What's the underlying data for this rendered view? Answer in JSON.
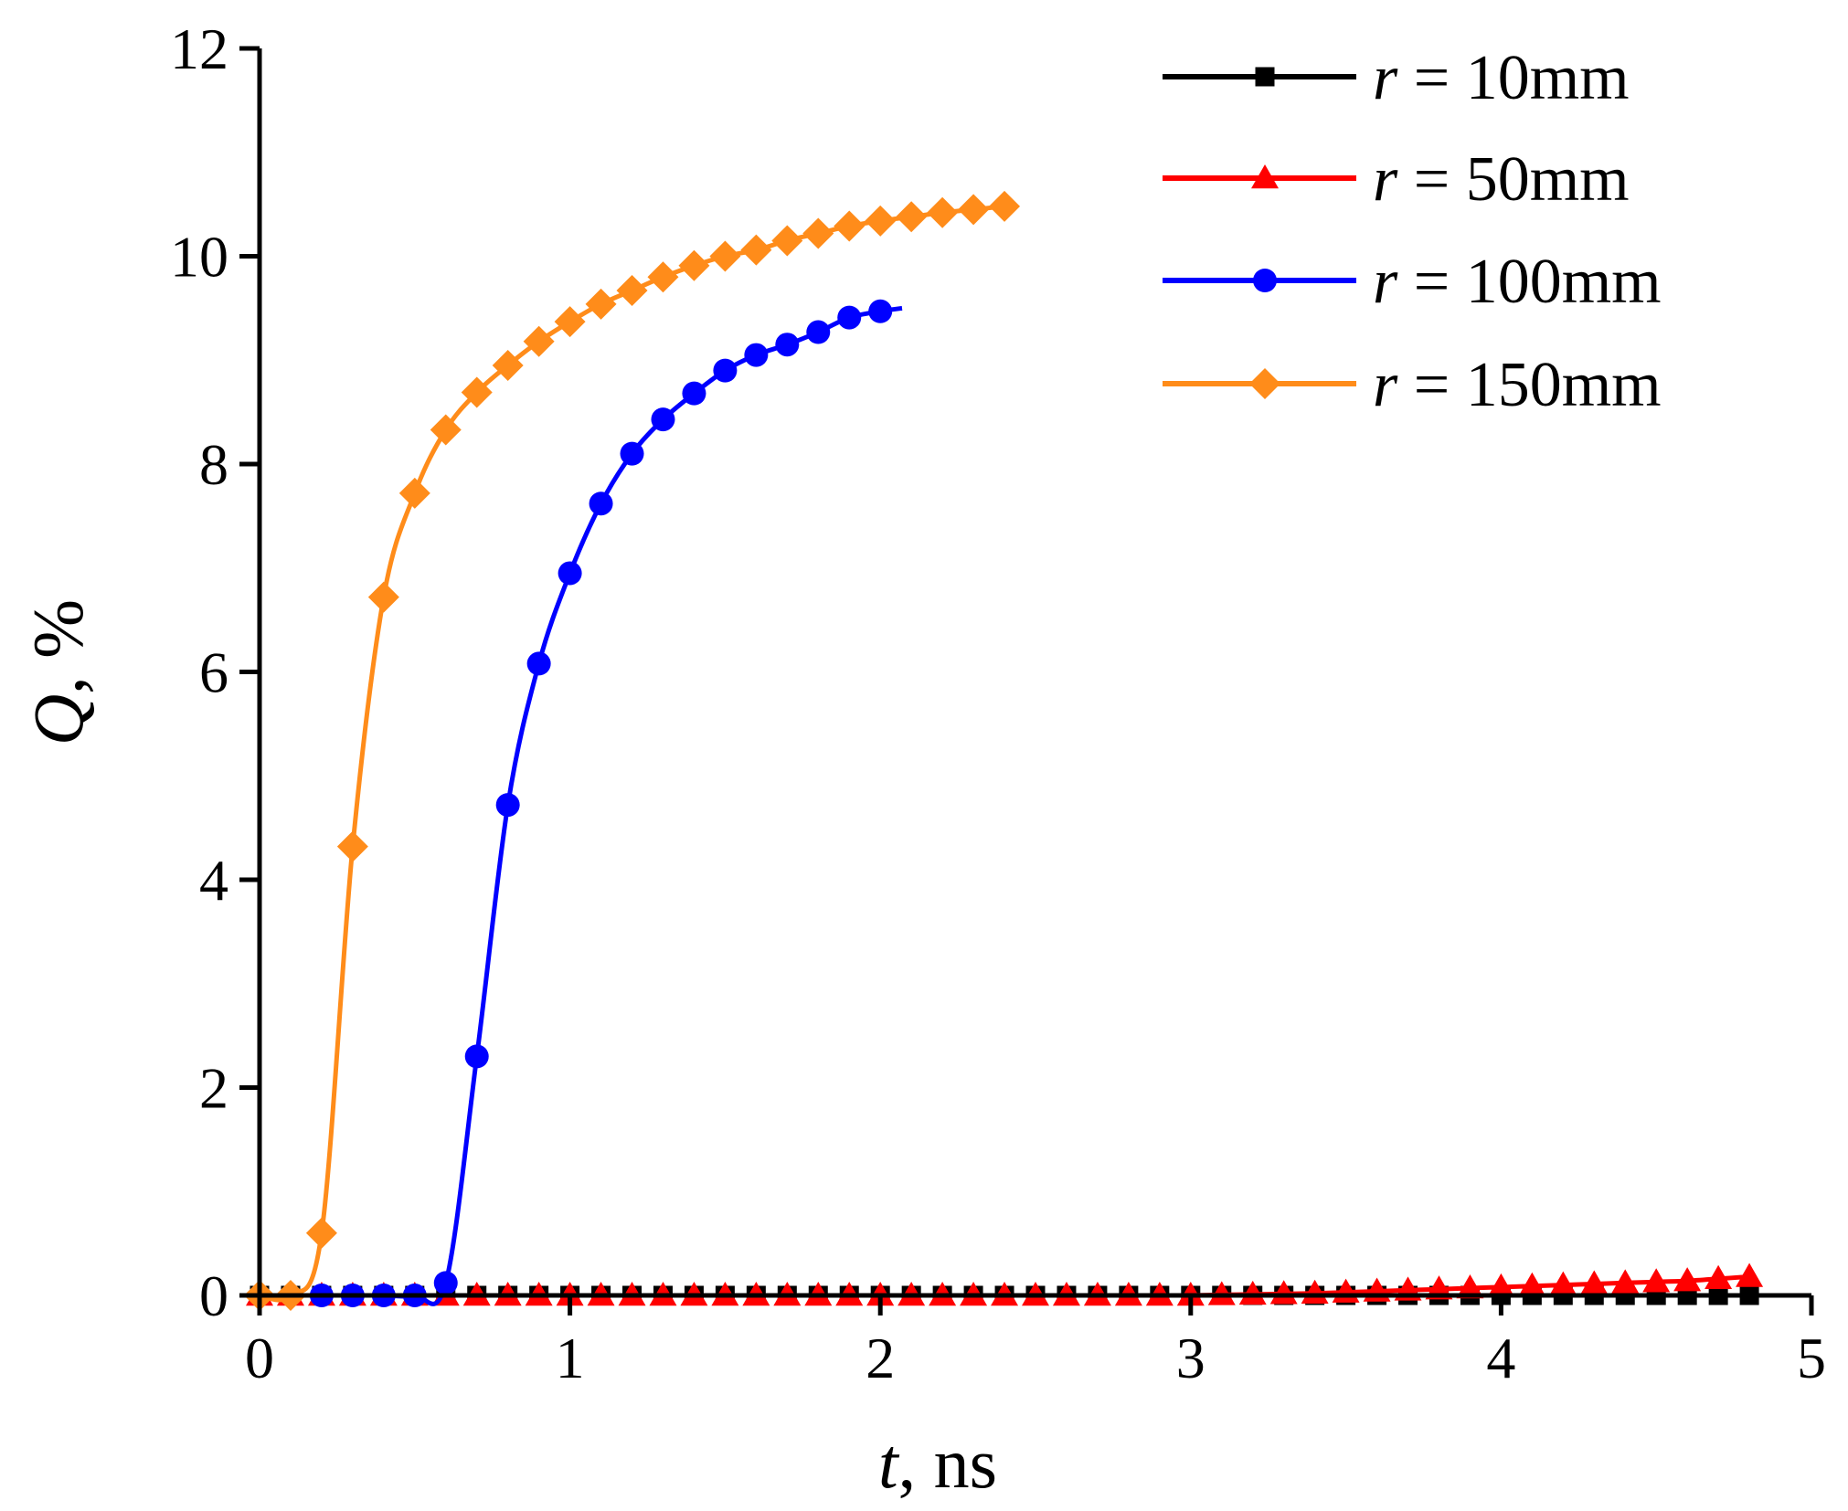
{
  "chart_data": {
    "type": "line",
    "title": "",
    "xlabel_var": "t",
    "xlabel_unit": ", ns",
    "ylabel_var": "Q",
    "ylabel_unit": ", %",
    "xlim": [
      0,
      5
    ],
    "ylim": [
      0,
      12
    ],
    "xticks": [
      0,
      1,
      2,
      3,
      4,
      5
    ],
    "yticks": [
      0,
      2,
      4,
      6,
      8,
      10,
      12
    ],
    "xtick_labels": [
      "0",
      "1",
      "2",
      "3",
      "4",
      "5"
    ],
    "ytick_labels": [
      "0",
      "2",
      "4",
      "6",
      "8",
      "10",
      "12"
    ],
    "grid": false,
    "legend_position": "top-right",
    "series": [
      {
        "name_var": "r",
        "name_rest": " = 10mm",
        "color": "#000000",
        "marker": "square",
        "x": [
          0,
          0.1,
          0.2,
          0.3,
          0.4,
          0.5,
          0.6,
          0.7,
          0.8,
          0.9,
          1.0,
          1.1,
          1.2,
          1.3,
          1.4,
          1.5,
          1.6,
          1.7,
          1.8,
          1.9,
          2.0,
          2.1,
          2.2,
          2.3,
          2.4,
          2.5,
          2.6,
          2.7,
          2.8,
          2.9,
          3.0,
          3.1,
          3.2,
          3.3,
          3.4,
          3.5,
          3.6,
          3.7,
          3.8,
          3.9,
          4.0,
          4.1,
          4.2,
          4.3,
          4.4,
          4.5,
          4.6,
          4.7,
          4.8
        ],
        "y": [
          0,
          0,
          0,
          0,
          0,
          0,
          0,
          0,
          0,
          0,
          0,
          0,
          0,
          0,
          0,
          0,
          0,
          0,
          0,
          0,
          0,
          0,
          0,
          0,
          0,
          0,
          0,
          0,
          0,
          0,
          0,
          0,
          0,
          0,
          0,
          0,
          0,
          0,
          0,
          0,
          0,
          0,
          0,
          0,
          0,
          0,
          0,
          0,
          0
        ]
      },
      {
        "name_var": "r",
        "name_rest": " = 50mm",
        "color": "#ff0000",
        "marker": "triangle",
        "x": [
          0,
          0.1,
          0.2,
          0.3,
          0.4,
          0.5,
          0.6,
          0.7,
          0.8,
          0.9,
          1.0,
          1.1,
          1.2,
          1.3,
          1.4,
          1.5,
          1.6,
          1.7,
          1.8,
          1.9,
          2.0,
          2.1,
          2.2,
          2.3,
          2.4,
          2.5,
          2.6,
          2.7,
          2.8,
          2.9,
          3.0,
          3.1,
          3.2,
          3.3,
          3.4,
          3.5,
          3.6,
          3.7,
          3.8,
          3.9,
          4.0,
          4.1,
          4.2,
          4.3,
          4.4,
          4.5,
          4.6,
          4.7,
          4.8
        ],
        "y": [
          0,
          0,
          0,
          0,
          0,
          0,
          0,
          0,
          0,
          0,
          0,
          0,
          0,
          0,
          0,
          0,
          0,
          0,
          0,
          0,
          0,
          0,
          0,
          0,
          0,
          0,
          0,
          0,
          0,
          0,
          0,
          0.005,
          0.01,
          0.015,
          0.02,
          0.03,
          0.04,
          0.05,
          0.06,
          0.07,
          0.08,
          0.09,
          0.1,
          0.11,
          0.12,
          0.13,
          0.14,
          0.16,
          0.18
        ]
      },
      {
        "name_var": "r",
        "name_rest": " = 100mm",
        "color": "#0000ff",
        "marker": "circle",
        "x": [
          0.2,
          0.3,
          0.4,
          0.5,
          0.6,
          0.7,
          0.8,
          0.9,
          1.0,
          1.1,
          1.2,
          1.3,
          1.4,
          1.5,
          1.6,
          1.7,
          1.8,
          1.9,
          2.0,
          2.07
        ],
        "y": [
          0,
          0,
          0,
          0,
          0.12,
          2.3,
          4.72,
          6.08,
          6.95,
          7.62,
          8.1,
          8.43,
          8.68,
          8.9,
          9.05,
          9.15,
          9.27,
          9.41,
          9.47,
          9.5
        ],
        "marker_count": 19
      },
      {
        "name_var": "r",
        "name_rest": " = 150mm",
        "color": "#ff8c1a",
        "marker": "diamond",
        "x": [
          0,
          0.1,
          0.2,
          0.3,
          0.4,
          0.5,
          0.6,
          0.7,
          0.8,
          0.9,
          1.0,
          1.1,
          1.2,
          1.3,
          1.4,
          1.5,
          1.6,
          1.7,
          1.8,
          1.9,
          2.0,
          2.1,
          2.2,
          2.3,
          2.4
        ],
        "y": [
          0,
          0,
          0.6,
          4.32,
          6.72,
          7.72,
          8.33,
          8.69,
          8.95,
          9.18,
          9.37,
          9.54,
          9.67,
          9.8,
          9.91,
          10.0,
          10.06,
          10.15,
          10.22,
          10.29,
          10.34,
          10.38,
          10.42,
          10.45,
          10.48
        ]
      }
    ]
  }
}
